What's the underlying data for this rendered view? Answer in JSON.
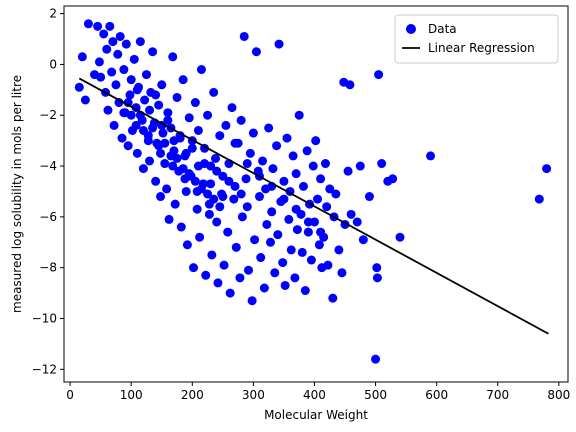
{
  "chart_data": {
    "type": "scatter",
    "title": "",
    "xlabel": "Molecular Weight",
    "ylabel": "measured log solubility in mols per litre",
    "xlim": [
      -10,
      815
    ],
    "ylim": [
      -12.5,
      2.3
    ],
    "xticks": [
      0,
      100,
      200,
      300,
      400,
      500,
      600,
      700,
      800
    ],
    "yticks": [
      -12,
      -10,
      -8,
      -6,
      -4,
      -2,
      0,
      2
    ],
    "grid": false,
    "legend": "top-right",
    "colors": {
      "data": "#0000ff",
      "regression": "#000000"
    },
    "series": [
      {
        "name": "Data",
        "kind": "scatter",
        "points": [
          [
            15,
            -0.9
          ],
          [
            20,
            0.3
          ],
          [
            25,
            -1.4
          ],
          [
            30,
            1.6
          ],
          [
            40,
            -0.4
          ],
          [
            45,
            1.5
          ],
          [
            48,
            0.1
          ],
          [
            50,
            -0.5
          ],
          [
            55,
            1.2
          ],
          [
            58,
            -1.1
          ],
          [
            60,
            0.6
          ],
          [
            62,
            -1.8
          ],
          [
            65,
            1.5
          ],
          [
            68,
            -0.3
          ],
          [
            70,
            0.9
          ],
          [
            72,
            -2.4
          ],
          [
            75,
            -0.8
          ],
          [
            78,
            0.4
          ],
          [
            80,
            -1.5
          ],
          [
            82,
            1.1
          ],
          [
            85,
            -2.9
          ],
          [
            88,
            -0.2
          ],
          [
            90,
            -1.9
          ],
          [
            92,
            0.8
          ],
          [
            95,
            -3.2
          ],
          [
            98,
            -1.2
          ],
          [
            100,
            -0.6
          ],
          [
            102,
            -2.6
          ],
          [
            105,
            0.2
          ],
          [
            108,
            -1.7
          ],
          [
            110,
            -3.5
          ],
          [
            112,
            -0.9
          ],
          [
            115,
            0.9
          ],
          [
            118,
            -2.2
          ],
          [
            120,
            -4.1
          ],
          [
            122,
            -1.4
          ],
          [
            125,
            -0.4
          ],
          [
            128,
            -2.8
          ],
          [
            130,
            -3.8
          ],
          [
            132,
            -1.1
          ],
          [
            135,
            0.5
          ],
          [
            138,
            -2.3
          ],
          [
            140,
            -4.6
          ],
          [
            142,
            -3.1
          ],
          [
            145,
            -1.6
          ],
          [
            148,
            -5.2
          ],
          [
            150,
            -0.8
          ],
          [
            152,
            -2.7
          ],
          [
            155,
            -3.9
          ],
          [
            158,
            -4.9
          ],
          [
            160,
            -1.9
          ],
          [
            162,
            -6.1
          ],
          [
            165,
            -2.5
          ],
          [
            168,
            0.3
          ],
          [
            170,
            -3.4
          ],
          [
            172,
            -5.5
          ],
          [
            175,
            -1.3
          ],
          [
            178,
            -4.2
          ],
          [
            180,
            -2.9
          ],
          [
            182,
            -6.4
          ],
          [
            185,
            -0.6
          ],
          [
            188,
            -3.6
          ],
          [
            190,
            -5.0
          ],
          [
            192,
            -7.1
          ],
          [
            195,
            -2.1
          ],
          [
            198,
            -4.4
          ],
          [
            200,
            -3.0
          ],
          [
            202,
            -8.0
          ],
          [
            205,
            -1.5
          ],
          [
            208,
            -5.7
          ],
          [
            210,
            -2.6
          ],
          [
            212,
            -6.8
          ],
          [
            215,
            -0.2
          ],
          [
            218,
            -4.7
          ],
          [
            220,
            -3.3
          ],
          [
            222,
            -8.3
          ],
          [
            225,
            -2.0
          ],
          [
            228,
            -5.9
          ],
          [
            230,
            -4.0
          ],
          [
            232,
            -7.5
          ],
          [
            235,
            -1.1
          ],
          [
            238,
            -3.7
          ],
          [
            240,
            -6.2
          ],
          [
            242,
            -8.6
          ],
          [
            245,
            -2.8
          ],
          [
            248,
            -5.1
          ],
          [
            250,
            -4.4
          ],
          [
            252,
            -7.9
          ],
          [
            255,
            -2.4
          ],
          [
            258,
            -6.6
          ],
          [
            260,
            -3.9
          ],
          [
            262,
            -9.0
          ],
          [
            265,
            -1.7
          ],
          [
            268,
            -5.3
          ],
          [
            270,
            -4.8
          ],
          [
            272,
            -7.2
          ],
          [
            275,
            -3.1
          ],
          [
            278,
            -8.4
          ],
          [
            280,
            -2.2
          ],
          [
            282,
            -6.0
          ],
          [
            285,
            1.1
          ],
          [
            288,
            -4.5
          ],
          [
            290,
            -5.6
          ],
          [
            292,
            -8.1
          ],
          [
            295,
            -3.5
          ],
          [
            298,
            -9.3
          ],
          [
            300,
            -2.7
          ],
          [
            302,
            -6.9
          ],
          [
            305,
            0.5
          ],
          [
            308,
            -4.2
          ],
          [
            310,
            -5.2
          ],
          [
            312,
            -7.6
          ],
          [
            315,
            -3.8
          ],
          [
            318,
            -8.8
          ],
          [
            320,
            -4.9
          ],
          [
            322,
            -6.3
          ],
          [
            325,
            -2.5
          ],
          [
            328,
            -7.0
          ],
          [
            330,
            -5.8
          ],
          [
            332,
            -4.1
          ],
          [
            335,
            -8.2
          ],
          [
            338,
            -3.2
          ],
          [
            340,
            -6.7
          ],
          [
            342,
            0.8
          ],
          [
            345,
            -5.4
          ],
          [
            348,
            -7.8
          ],
          [
            350,
            -4.6
          ],
          [
            352,
            -8.7
          ],
          [
            355,
            -2.9
          ],
          [
            358,
            -6.1
          ],
          [
            360,
            -5.0
          ],
          [
            362,
            -7.3
          ],
          [
            365,
            -3.6
          ],
          [
            368,
            -8.4
          ],
          [
            370,
            -4.3
          ],
          [
            372,
            -6.5
          ],
          [
            375,
            -2.0
          ],
          [
            378,
            -5.9
          ],
          [
            380,
            -7.4
          ],
          [
            382,
            -4.8
          ],
          [
            385,
            -8.9
          ],
          [
            388,
            -3.4
          ],
          [
            390,
            -6.6
          ],
          [
            392,
            -5.5
          ],
          [
            395,
            -7.7
          ],
          [
            398,
            -4.0
          ],
          [
            400,
            -6.2
          ],
          [
            402,
            -3.0
          ],
          [
            405,
            -5.3
          ],
          [
            408,
            -7.1
          ],
          [
            410,
            -4.5
          ],
          [
            412,
            -8.0
          ],
          [
            415,
            -6.8
          ],
          [
            418,
            -3.9
          ],
          [
            420,
            -5.6
          ],
          [
            422,
            -7.9
          ],
          [
            425,
            -4.9
          ],
          [
            430,
            -9.2
          ],
          [
            432,
            -6.0
          ],
          [
            435,
            -5.1
          ],
          [
            440,
            -7.3
          ],
          [
            445,
            -8.2
          ],
          [
            448,
            -0.7
          ],
          [
            450,
            -6.3
          ],
          [
            455,
            -4.2
          ],
          [
            458,
            -0.8
          ],
          [
            460,
            -5.9
          ],
          [
            470,
            -6.2
          ],
          [
            475,
            -4.0
          ],
          [
            480,
            -6.9
          ],
          [
            490,
            -5.2
          ],
          [
            500,
            -11.6
          ],
          [
            502,
            -8.0
          ],
          [
            503,
            -8.4
          ],
          [
            505,
            -0.4
          ],
          [
            510,
            -3.9
          ],
          [
            520,
            -4.6
          ],
          [
            528,
            -4.5
          ],
          [
            540,
            -6.8
          ],
          [
            590,
            -3.6
          ],
          [
            768,
            -5.3
          ],
          [
            780,
            -4.1
          ],
          [
            140,
            -1.2
          ],
          [
            160,
            -2.2
          ],
          [
            180,
            -2.8
          ],
          [
            200,
            -3.3
          ],
          [
            220,
            -3.9
          ],
          [
            240,
            -4.2
          ],
          [
            260,
            -4.6
          ],
          [
            280,
            -5.1
          ],
          [
            110,
            -1.0
          ],
          [
            130,
            -1.8
          ],
          [
            150,
            -2.4
          ],
          [
            170,
            -3.0
          ],
          [
            190,
            -3.5
          ],
          [
            210,
            -4.0
          ],
          [
            230,
            -4.7
          ],
          [
            250,
            -5.2
          ],
          [
            100,
            -2.0
          ],
          [
            120,
            -2.6
          ],
          [
            145,
            -3.2
          ],
          [
            165,
            -3.6
          ],
          [
            185,
            -4.1
          ],
          [
            205,
            -4.6
          ],
          [
            225,
            -5.1
          ],
          [
            245,
            -5.6
          ],
          [
            95,
            -1.5
          ],
          [
            115,
            -2.0
          ],
          [
            135,
            -2.5
          ],
          [
            155,
            -3.1
          ],
          [
            175,
            -3.7
          ],
          [
            195,
            -4.3
          ],
          [
            215,
            -4.9
          ],
          [
            235,
            -5.3
          ],
          [
            88,
            -1.9
          ],
          [
            108,
            -2.4
          ],
          [
            128,
            -3.0
          ],
          [
            148,
            -3.5
          ],
          [
            168,
            -4.0
          ],
          [
            188,
            -4.5
          ],
          [
            208,
            -5.0
          ],
          [
            228,
            -5.5
          ],
          [
            270,
            -3.1
          ],
          [
            290,
            -3.9
          ],
          [
            310,
            -4.4
          ],
          [
            330,
            -4.8
          ],
          [
            350,
            -5.3
          ],
          [
            370,
            -5.7
          ],
          [
            390,
            -6.2
          ],
          [
            410,
            -6.6
          ]
        ]
      },
      {
        "name": "Linear Regression",
        "kind": "line",
        "points": [
          [
            15,
            -0.55
          ],
          [
            783,
            -10.6
          ]
        ]
      }
    ]
  }
}
